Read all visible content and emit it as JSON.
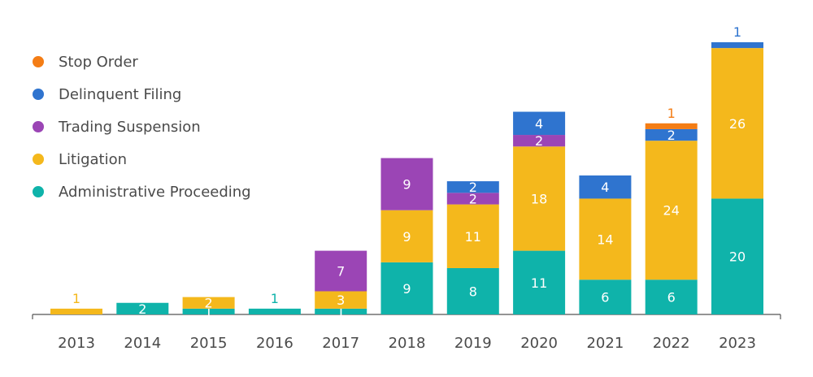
{
  "chart_data": {
    "type": "bar",
    "stacked": true,
    "categories": [
      "2013",
      "2014",
      "2015",
      "2016",
      "2017",
      "2018",
      "2019",
      "2020",
      "2021",
      "2022",
      "2023"
    ],
    "series": [
      {
        "name": "Administrative Proceeding",
        "color": "#0fb3aa",
        "values": [
          0,
          2,
          1,
          1,
          1,
          9,
          8,
          11,
          6,
          6,
          20
        ]
      },
      {
        "name": "Litigation",
        "color": "#f4b81c",
        "values": [
          1,
          0,
          2,
          0,
          3,
          9,
          11,
          18,
          14,
          24,
          26
        ]
      },
      {
        "name": "Trading Suspension",
        "color": "#9b45b5",
        "values": [
          0,
          0,
          0,
          0,
          7,
          9,
          2,
          2,
          0,
          0,
          0
        ]
      },
      {
        "name": "Delinquent Filing",
        "color": "#2f74cf",
        "values": [
          0,
          0,
          0,
          0,
          0,
          0,
          2,
          4,
          4,
          2,
          1
        ]
      },
      {
        "name": "Stop Order",
        "color": "#f47d15",
        "values": [
          0,
          0,
          0,
          0,
          0,
          0,
          0,
          0,
          0,
          1,
          0
        ]
      }
    ],
    "legend_order": [
      "Stop Order",
      "Delinquent Filing",
      "Trading Suspension",
      "Litigation",
      "Administrative Proceeding"
    ],
    "legend_position": "top-left",
    "ylim": [
      0,
      47
    ],
    "grid": false,
    "y_axis_visible": false
  }
}
